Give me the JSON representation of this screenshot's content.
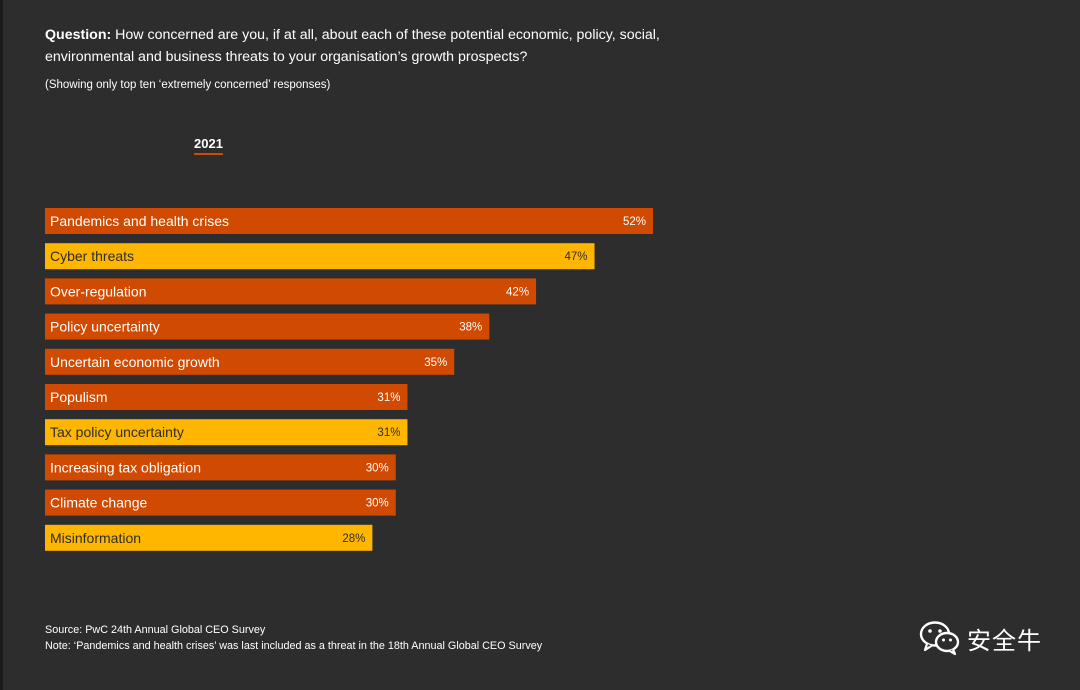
{
  "question": {
    "label": "Question:",
    "text": "How concerned are you, if at all, about each of these potential economic, policy, social, environmental and business threats to your organisation’s growth prospects?"
  },
  "subtitle": "(Showing only top ten ‘extremely concerned’ responses)",
  "year_tab": "2021",
  "colors": {
    "orange": "#d04a02",
    "yellow": "#ffb600",
    "background": "#2d2d2d"
  },
  "chart_data": {
    "type": "bar",
    "orientation": "horizontal",
    "title": "2021",
    "unit": "%",
    "xlim": [
      0,
      52
    ],
    "categories": [
      "Pandemics and health crises",
      "Cyber threats",
      "Over-regulation",
      "Policy uncertainty",
      "Uncertain economic growth",
      "Populism",
      "Tax policy uncertainty",
      "Increasing tax obligation",
      "Climate change",
      "Misinformation"
    ],
    "values": [
      52,
      47,
      42,
      38,
      35,
      31,
      31,
      30,
      30,
      28
    ],
    "value_labels": [
      "52%",
      "47%",
      "42%",
      "38%",
      "35%",
      "31%",
      "31%",
      "30%",
      "30%",
      "28%"
    ],
    "highlight": [
      false,
      true,
      false,
      false,
      false,
      false,
      true,
      false,
      false,
      true
    ]
  },
  "footer": {
    "source": "Source: PwC 24th Annual Global CEO Survey",
    "note": "Note: ‘Pandemics and health crises’ was last included as a threat in the 18th Annual Global CEO Survey"
  },
  "watermark": {
    "icon": "wechat-icon",
    "text": "安全牛"
  }
}
